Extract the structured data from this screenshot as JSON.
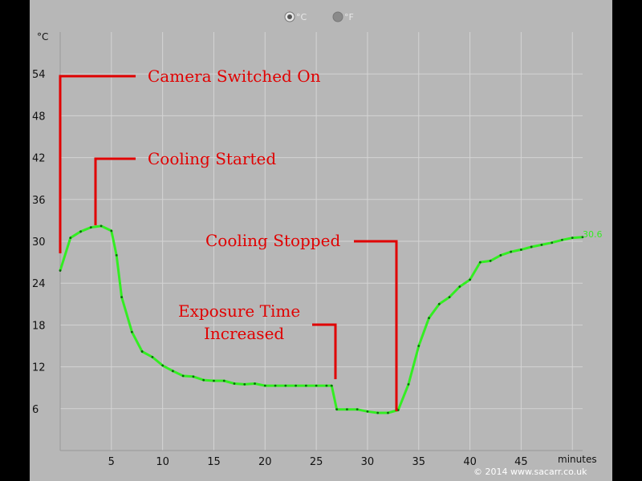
{
  "unit_toggle": {
    "options": [
      {
        "label": "°C",
        "selected": true
      },
      {
        "label": "°F",
        "selected": false
      }
    ]
  },
  "copyright": "© 2014 www.sacarr.co.uk",
  "colors": {
    "panel": "#b7b7b7",
    "grid": "#d4d4d4",
    "series": "#33ee22",
    "annotation": "#e00000"
  },
  "chart_data": {
    "type": "line",
    "ylabel": "°C",
    "xlabel": "minutes",
    "xlim": [
      0,
      51
    ],
    "ylim": [
      0,
      60
    ],
    "xticks": [
      5,
      10,
      15,
      20,
      25,
      30,
      35,
      40,
      45
    ],
    "yticks": [
      6,
      12,
      18,
      24,
      30,
      36,
      42,
      48,
      54
    ],
    "grid": true,
    "end_label": "30.6",
    "series": [
      {
        "color": "#33ee22",
        "x": [
          0,
          1,
          2,
          3,
          4,
          5,
          5.5,
          6,
          7,
          8,
          9,
          10,
          11,
          12,
          13,
          14,
          15,
          16,
          17,
          18,
          19,
          20,
          21,
          22,
          23,
          24,
          25,
          26,
          26.5,
          27,
          28,
          29,
          30,
          31,
          32,
          33,
          34,
          35,
          36,
          37,
          38,
          39,
          40,
          41,
          42,
          43,
          44,
          45,
          46,
          47,
          48,
          49,
          50,
          51
        ],
        "y": [
          25.8,
          30.5,
          31.4,
          32.0,
          32.2,
          31.5,
          28.0,
          22.0,
          17.0,
          14.2,
          13.4,
          12.2,
          11.4,
          10.7,
          10.6,
          10.1,
          10.0,
          10.0,
          9.6,
          9.5,
          9.6,
          9.3,
          9.3,
          9.3,
          9.3,
          9.3,
          9.3,
          9.3,
          9.3,
          5.9,
          5.9,
          5.9,
          5.6,
          5.4,
          5.4,
          5.8,
          9.5,
          15.0,
          19.0,
          21.0,
          22.0,
          23.5,
          24.5,
          27.0,
          27.2,
          28.0,
          28.5,
          28.8,
          29.2,
          29.5,
          29.8,
          30.2,
          30.5,
          30.6
        ]
      }
    ],
    "annotations": [
      {
        "text": "Camera Switched On"
      },
      {
        "text": "Cooling Started"
      },
      {
        "text": "Cooling Stopped"
      },
      {
        "text": "Exposure Time"
      },
      {
        "text": "Increased"
      }
    ]
  }
}
